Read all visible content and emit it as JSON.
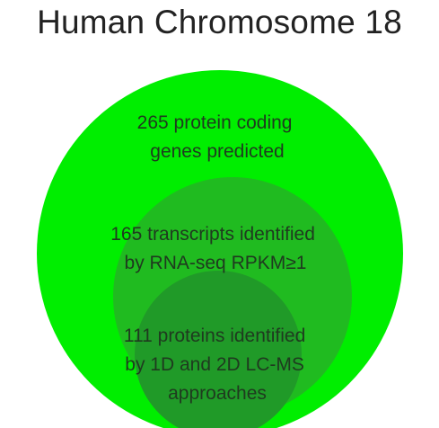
{
  "title": "Human Chromosome 18",
  "colors": {
    "outer": "#00ee00",
    "middle": "#20bb20",
    "inner": "#209a28",
    "text": "#1f3a1f"
  },
  "sets": [
    {
      "name": "protein-coding-genes",
      "count": 265,
      "lines": [
        "265 protein coding",
        "genes predicted"
      ]
    },
    {
      "name": "rna-seq-transcripts",
      "count": 165,
      "lines": [
        "165 transcripts identified",
        "by RNA-seq RPKM≥1"
      ]
    },
    {
      "name": "lc-ms-proteins",
      "count": 111,
      "lines": [
        "111 proteins identified",
        "by 1D and 2D LC-MS",
        "approaches"
      ]
    }
  ]
}
